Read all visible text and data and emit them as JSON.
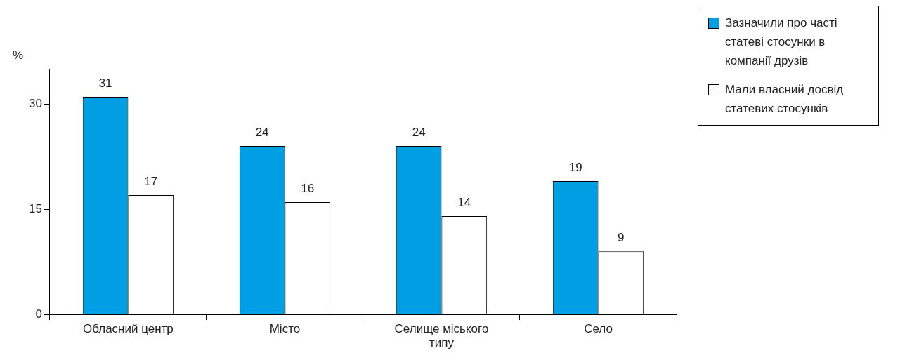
{
  "chart_data": {
    "type": "bar",
    "ylabel": "%",
    "categories": [
      "Обласний центр",
      "Місто",
      "Селище міського типу",
      "Село"
    ],
    "series": [
      {
        "name": "Зазначили про часті статеві стосунки в компанії друзів",
        "color": "#009fe3",
        "values": [
          31,
          24,
          24,
          19
        ]
      },
      {
        "name": "Мали власний досвід статевих стосунків",
        "color": "#ffffff",
        "values": [
          17,
          16,
          14,
          9
        ]
      }
    ],
    "ylim": [
      0,
      35
    ],
    "yticks": [
      0,
      15,
      30
    ],
    "grid": false,
    "legend": "top right",
    "data_labels": true
  }
}
